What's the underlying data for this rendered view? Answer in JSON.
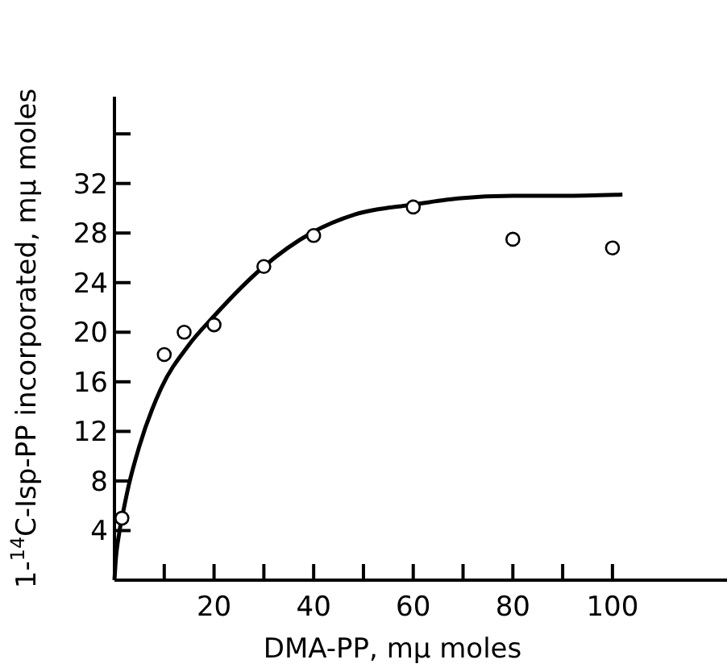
{
  "chart_data": {
    "type": "scatter",
    "xlabel": "DMA-PP,  mμ moles",
    "ylabel": "1-$^{14}$C-Isp-PP incorporated, mμ moles",
    "xlim": [
      0,
      123
    ],
    "ylim": [
      0,
      39
    ],
    "xticks": [
      {
        "value": 10,
        "label": null
      },
      20,
      {
        "value": 30,
        "label": null
      },
      40,
      {
        "value": 50,
        "label": null
      },
      60,
      {
        "value": 70,
        "label": null
      },
      80,
      {
        "value": 90,
        "label": null
      },
      100
    ],
    "yticks": [
      4,
      8,
      12,
      16,
      20,
      24,
      28,
      32,
      {
        "value": 36,
        "label": null
      }
    ],
    "grid": false,
    "series": [
      {
        "marker": "circle",
        "color": "#000000",
        "x": [
          1.5,
          10,
          14,
          20,
          30,
          40,
          60,
          80,
          100
        ],
        "values": [
          5.0,
          18.2,
          20.0,
          20.6,
          25.3,
          27.8,
          30.1,
          27.5,
          26.8
        ]
      },
      {
        "type": "line",
        "line_style": "solid",
        "color": "#000000",
        "x": [
          0,
          0.2,
          1,
          1.8,
          2.9,
          5,
          9.4,
          14.8,
          20,
          30,
          39.5,
          48.3,
          60,
          69,
          80,
          90,
          102
        ],
        "values": [
          0,
          1.3,
          3.9,
          5.6,
          7.7,
          10.8,
          15.5,
          18.9,
          21.3,
          25.3,
          28,
          29.5,
          30.3,
          30.8,
          31.0,
          31.0,
          31.1
        ]
      }
    ]
  }
}
